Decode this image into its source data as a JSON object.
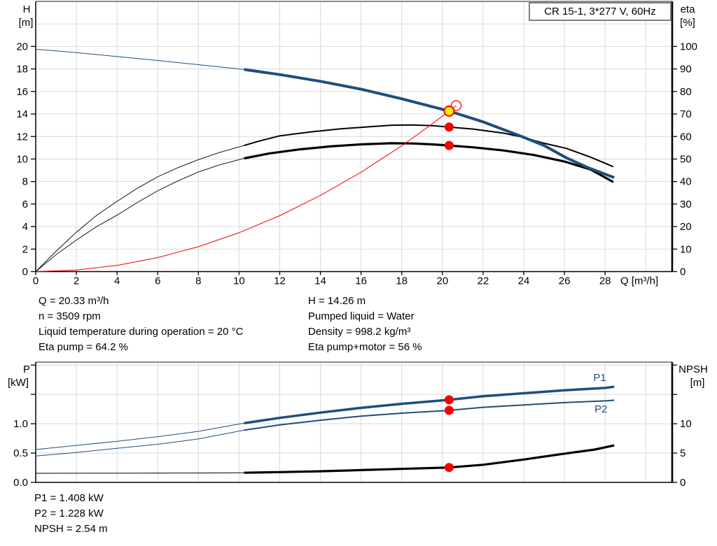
{
  "title_box": {
    "label": "CR 15-1, 3*277 V, 60Hz"
  },
  "colors": {
    "curve_blue": "#1f4e7c",
    "curve_black": "#000000",
    "curve_red": "#f20000",
    "dot_red": "#fb0000",
    "dot_yellow": "#ffec00",
    "grid": "#d9d9d9",
    "axis": "#000000",
    "frame_gray": "#666666"
  },
  "info_blocks": {
    "top_left": [
      "Q = 20.33 m³/h",
      "n = 3509 rpm",
      "Liquid temperature during operation = 20 °C",
      "Eta pump = 64.2 %"
    ],
    "top_right": [
      "H = 14.26 m",
      "Pumped liquid = Water",
      "Density = 998.2 kg/m³",
      "Eta pump+motor = 56 %"
    ],
    "bottom": [
      "P1 = 1.408 kW",
      "P2 = 1.228 kW",
      "NPSH = 2.54 m"
    ]
  },
  "chart_data": [
    {
      "type": "line",
      "name": "head-and-efficiency-vs-flow",
      "x_axis": {
        "label": "Q [m³/h]",
        "min": 0,
        "max": 31.3,
        "tick_values": [
          0,
          2,
          4,
          6,
          8,
          10,
          12,
          14,
          16,
          18,
          20,
          22,
          24,
          26,
          28
        ],
        "tick_labels": [
          "0",
          "2",
          "4",
          "6",
          "8",
          "10",
          "12",
          "14",
          "16",
          "18",
          "20",
          "22",
          "24",
          "26",
          "28"
        ],
        "grid": [
          2,
          4,
          6,
          8,
          10,
          12,
          14,
          16,
          18,
          20,
          22,
          24,
          26,
          28,
          30
        ],
        "show_tick_labels": true
      },
      "y_left": {
        "label": "H",
        "unit": "[m]",
        "min": 0,
        "max": 24,
        "tick_values": [
          0,
          2,
          4,
          6,
          8,
          10,
          12,
          14,
          16,
          18,
          20
        ],
        "tick_labels": [
          "0",
          "2",
          "4",
          "6",
          "8",
          "10",
          "12",
          "14",
          "16",
          "18",
          "20"
        ],
        "minor_ticks": [],
        "grid": [
          2,
          4,
          6,
          8,
          10,
          12,
          14,
          16,
          18,
          20,
          22
        ]
      },
      "y_right": {
        "label": "eta",
        "unit": "[%]",
        "min": 0,
        "max": 120,
        "tick_values": [
          0,
          10,
          20,
          30,
          40,
          50,
          60,
          70,
          80,
          90,
          100
        ],
        "tick_labels": [
          "0",
          "10",
          "20",
          "30",
          "40",
          "50",
          "60",
          "70",
          "80",
          "90",
          "100"
        ],
        "minor_ticks": []
      },
      "series": [
        {
          "name": "eta-pump-curve",
          "axis": "right",
          "color_key": "curve_black",
          "w_thin": 0.9,
          "w_thick": 2,
          "thick_from": 10.25,
          "points": [
            [
              0,
              0
            ],
            [
              1,
              9
            ],
            [
              2,
              17.5
            ],
            [
              3,
              25
            ],
            [
              4,
              31.2
            ],
            [
              5,
              37
            ],
            [
              6,
              42.1
            ],
            [
              7,
              46.2
            ],
            [
              8,
              49.7
            ],
            [
              9,
              52.8
            ],
            [
              10.25,
              56
            ],
            [
              11,
              58
            ],
            [
              12,
              60.3
            ],
            [
              13.5,
              62
            ],
            [
              15,
              63.4
            ],
            [
              16.5,
              64.4
            ],
            [
              17.5,
              65
            ],
            [
              18.5,
              65.1
            ],
            [
              19.5,
              64.8
            ],
            [
              20.33,
              64.2
            ],
            [
              21.5,
              63.3
            ],
            [
              23,
              61.5
            ],
            [
              23.9,
              59.8
            ],
            [
              25,
              57
            ],
            [
              26.1,
              54.7
            ],
            [
              27.3,
              50.8
            ],
            [
              28.4,
              46.6
            ]
          ]
        },
        {
          "name": "eta-pump-motor-curve",
          "axis": "right",
          "color_key": "curve_black",
          "w_thin": 0.9,
          "w_thick": 3.2,
          "thick_from": 10.25,
          "points": [
            [
              0,
              0
            ],
            [
              1,
              7.5
            ],
            [
              2,
              14
            ],
            [
              3,
              20
            ],
            [
              4,
              25.1
            ],
            [
              5,
              30.7
            ],
            [
              6,
              35.9
            ],
            [
              7,
              40.3
            ],
            [
              8,
              44.2
            ],
            [
              9,
              47.3
            ],
            [
              10.25,
              50.3
            ],
            [
              11.5,
              52.5
            ],
            [
              13,
              54.3
            ],
            [
              14.5,
              55.6
            ],
            [
              16,
              56.5
            ],
            [
              17.5,
              57
            ],
            [
              18.5,
              56.9
            ],
            [
              19.5,
              56.5
            ],
            [
              20.33,
              56
            ],
            [
              21.5,
              55.2
            ],
            [
              23,
              53.8
            ],
            [
              24.5,
              51.8
            ],
            [
              26,
              48.9
            ],
            [
              27.3,
              45.3
            ],
            [
              28.4,
              39.8
            ]
          ]
        },
        {
          "name": "system-curve",
          "axis": "left",
          "color_key": "curve_red",
          "w_thin": 1,
          "w_thick": null,
          "thick_from": null,
          "points": [
            [
              0,
              0
            ],
            [
              2,
              0.14
            ],
            [
              4,
              0.55
            ],
            [
              6,
              1.24
            ],
            [
              8,
              2.21
            ],
            [
              10,
              3.45
            ],
            [
              12,
              4.97
            ],
            [
              14,
              6.76
            ],
            [
              16,
              8.83
            ],
            [
              18,
              11.17
            ],
            [
              19.5,
              13.12
            ],
            [
              20.68,
              14.75
            ]
          ]
        },
        {
          "name": "pump-head-curve",
          "axis": "left",
          "color_key": "curve_blue",
          "w_thin": 1,
          "w_thick": 4,
          "thick_from": 10.25,
          "points": [
            [
              0,
              19.75
            ],
            [
              2,
              19.45
            ],
            [
              4,
              19.1
            ],
            [
              6,
              18.75
            ],
            [
              8,
              18.38
            ],
            [
              10.25,
              17.95
            ],
            [
              12,
              17.5
            ],
            [
              14,
              16.9
            ],
            [
              16,
              16.2
            ],
            [
              18,
              15.35
            ],
            [
              20.33,
              14.26
            ],
            [
              22,
              13.3
            ],
            [
              23.9,
              12.0
            ],
            [
              25,
              11.2
            ],
            [
              26.1,
              10.1
            ],
            [
              27.2,
              9.2
            ],
            [
              28.45,
              8.35
            ]
          ]
        }
      ],
      "labels": [],
      "markers": [
        {
          "name": "system-curve-end-marker",
          "axis": "left",
          "x": 20.68,
          "y": 14.75,
          "style": "open"
        },
        {
          "name": "duty-point",
          "axis": "left",
          "x": 20.33,
          "y": 14.26,
          "style": "yellow"
        },
        {
          "name": "eta-pump-point",
          "axis": "right",
          "x": 20.33,
          "y": 64.2,
          "style": "red"
        },
        {
          "name": "eta-pump-motor-point",
          "axis": "right",
          "x": 20.33,
          "y": 56,
          "style": "red"
        }
      ]
    },
    {
      "type": "line",
      "name": "power-and-npsh-vs-flow",
      "x_axis": {
        "label": "",
        "min": 0,
        "max": 31.3,
        "tick_values": [],
        "tick_labels": [],
        "grid": [
          2,
          4,
          6,
          8,
          10,
          12,
          14,
          16,
          18,
          20,
          22,
          24,
          26,
          28,
          30
        ],
        "show_tick_labels": false
      },
      "y_left": {
        "label": "P",
        "unit": "[kW]",
        "min": 0,
        "max": 2.05,
        "tick_values": [
          0,
          0.5,
          1.0
        ],
        "tick_labels": [
          "0.0",
          "0.5",
          "1.0"
        ],
        "minor_ticks": [
          1.5,
          2.0
        ],
        "grid": [
          0.5,
          1.0,
          1.5,
          2.0
        ]
      },
      "y_right": {
        "label": "NPSH",
        "unit": "[m]",
        "min": 0,
        "max": 20.5,
        "tick_values": [
          0,
          5,
          10
        ],
        "tick_labels": [
          "0",
          "5",
          "10"
        ],
        "minor_ticks": [
          15,
          20
        ]
      },
      "series": [
        {
          "name": "p1-power-curve",
          "axis": "left",
          "color_key": "curve_blue",
          "w_thin": 1,
          "w_thick": 3.5,
          "thick_from": 10.25,
          "points": [
            [
              0,
              0.56
            ],
            [
              2,
              0.63
            ],
            [
              4,
              0.7
            ],
            [
              6,
              0.78
            ],
            [
              8,
              0.87
            ],
            [
              10.25,
              1.01
            ],
            [
              12,
              1.1
            ],
            [
              14,
              1.19
            ],
            [
              16,
              1.27
            ],
            [
              18,
              1.34
            ],
            [
              20.33,
              1.408
            ],
            [
              22,
              1.47
            ],
            [
              24,
              1.52
            ],
            [
              26,
              1.57
            ],
            [
              28,
              1.61
            ],
            [
              28.45,
              1.63
            ]
          ]
        },
        {
          "name": "p2-power-curve",
          "axis": "left",
          "color_key": "curve_blue",
          "w_thin": 1,
          "w_thick": 2,
          "thick_from": 10.25,
          "points": [
            [
              0,
              0.45
            ],
            [
              2,
              0.51
            ],
            [
              4,
              0.58
            ],
            [
              6,
              0.65
            ],
            [
              8,
              0.74
            ],
            [
              10.25,
              0.89
            ],
            [
              12,
              0.98
            ],
            [
              14,
              1.06
            ],
            [
              16,
              1.13
            ],
            [
              18,
              1.18
            ],
            [
              20.33,
              1.228
            ],
            [
              22,
              1.28
            ],
            [
              24,
              1.32
            ],
            [
              26,
              1.36
            ],
            [
              28,
              1.39
            ],
            [
              28.45,
              1.4
            ]
          ]
        },
        {
          "name": "npsh-curve",
          "axis": "right",
          "color_key": "curve_black",
          "w_thin": 1,
          "w_thick": 3.2,
          "thick_from": 10.25,
          "points": [
            [
              0,
              1.55
            ],
            [
              4,
              1.56
            ],
            [
              8,
              1.6
            ],
            [
              10.25,
              1.65
            ],
            [
              12,
              1.75
            ],
            [
              14,
              1.9
            ],
            [
              16,
              2.1
            ],
            [
              18,
              2.3
            ],
            [
              20.33,
              2.54
            ],
            [
              22,
              3.0
            ],
            [
              24,
              3.9
            ],
            [
              26,
              4.9
            ],
            [
              27.5,
              5.6
            ],
            [
              28.45,
              6.3
            ]
          ]
        }
      ],
      "labels": [
        {
          "text": "P1",
          "x": 27.74,
          "y": 1.79,
          "axis": "left"
        },
        {
          "text": "P2",
          "x": 27.8,
          "y": 1.25,
          "axis": "left"
        }
      ],
      "markers": [
        {
          "name": "p1-point",
          "axis": "left",
          "x": 20.33,
          "y": 1.408,
          "style": "red"
        },
        {
          "name": "p2-point",
          "axis": "left",
          "x": 20.33,
          "y": 1.228,
          "style": "red"
        },
        {
          "name": "npsh-point",
          "axis": "right",
          "x": 20.33,
          "y": 2.54,
          "style": "red"
        }
      ]
    }
  ]
}
